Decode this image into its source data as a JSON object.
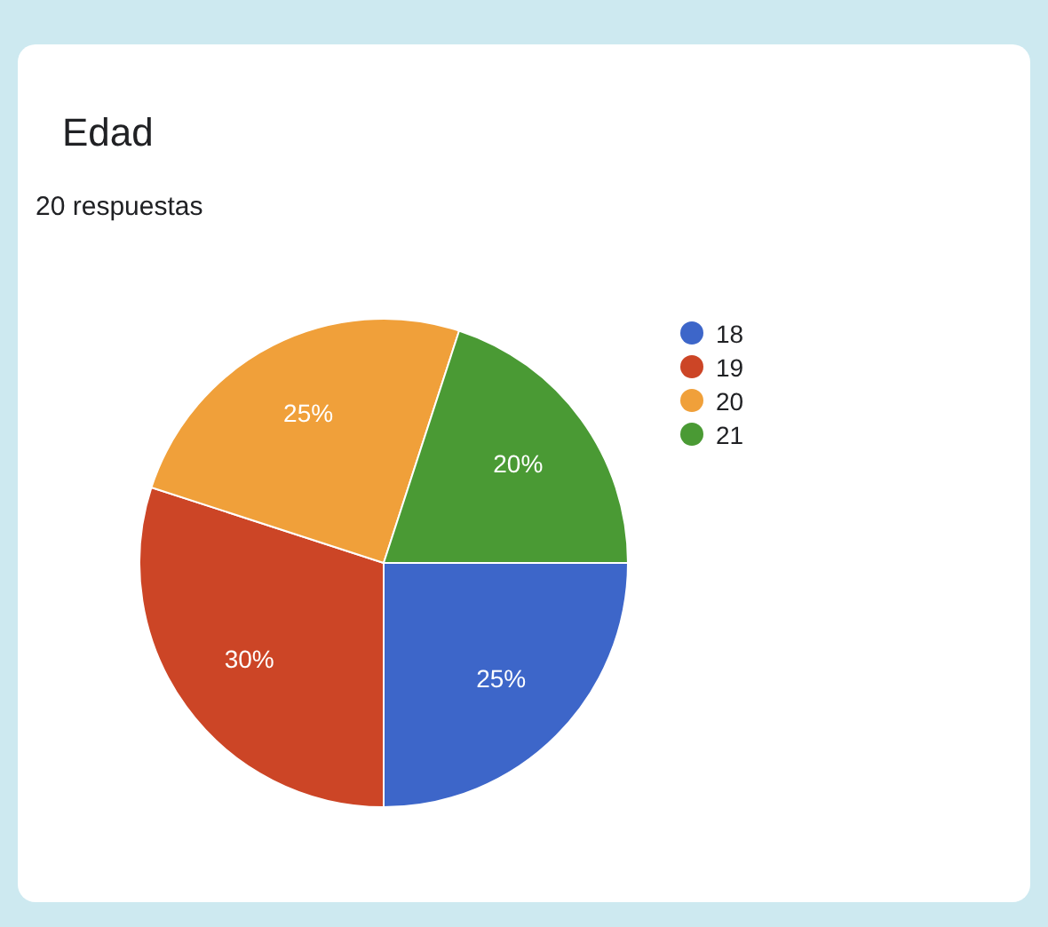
{
  "chart_data": {
    "type": "pie",
    "title": "Edad",
    "subtitle": "20 respuestas",
    "categories": [
      "18",
      "19",
      "20",
      "21"
    ],
    "values": [
      25,
      30,
      25,
      20
    ],
    "value_labels": [
      "25%",
      "30%",
      "25%",
      "20%"
    ],
    "colors": [
      "#3d66c9",
      "#cc4526",
      "#f0a03a",
      "#4a9a34"
    ],
    "legend": "right"
  }
}
